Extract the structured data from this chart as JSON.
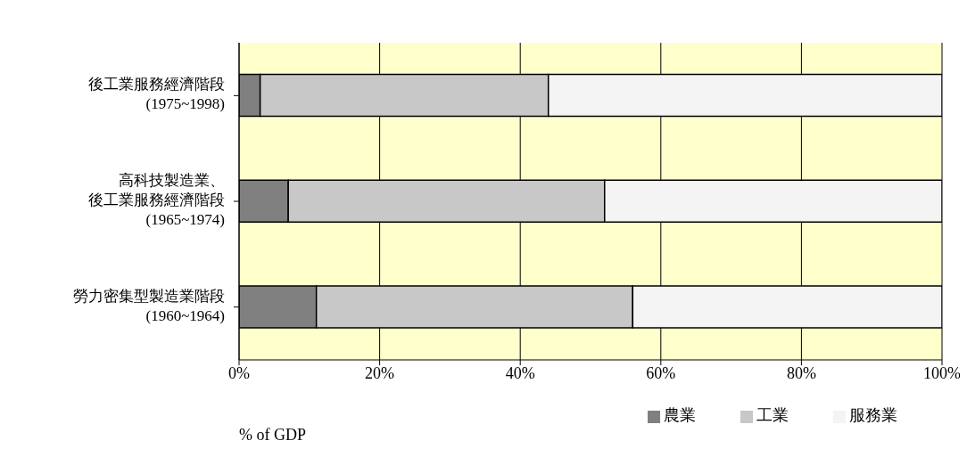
{
  "chart_data": {
    "type": "bar",
    "orientation": "horizontal",
    "stacked": true,
    "categories": [
      "後工業服務經濟階段 (1975~1998)",
      "高科技製造業、後工業服務經濟階段 (1965~1974)",
      "勞力密集型製造業階段 (1960~1964)"
    ],
    "series": [
      {
        "name": "農業",
        "color": "#808080",
        "values": [
          3,
          7,
          11
        ]
      },
      {
        "name": "工業",
        "color": "#c8c8c8",
        "values": [
          41,
          45,
          45
        ]
      },
      {
        "name": "服務業",
        "color": "#f4f4f4",
        "values": [
          56,
          48,
          44
        ]
      }
    ],
    "xlim": [
      0,
      100
    ],
    "xticks": [
      {
        "value": 0,
        "label": "0%"
      },
      {
        "value": 20,
        "label": "20%"
      },
      {
        "value": 40,
        "label": "40%"
      },
      {
        "value": 60,
        "label": "60%"
      },
      {
        "value": 80,
        "label": "80%"
      },
      {
        "value": 100,
        "label": "100%"
      }
    ],
    "xlabel": "% of GDP",
    "grid": "x",
    "legend": "bottom right"
  }
}
